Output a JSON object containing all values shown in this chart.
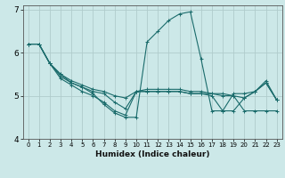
{
  "xlabel": "Humidex (Indice chaleur)",
  "bg_color": "#cce8e8",
  "line_color": "#1a6b6b",
  "grid_color": "#b0cccc",
  "xlim": [
    -0.5,
    23.5
  ],
  "ylim": [
    4,
    7.1
  ],
  "yticks": [
    4,
    5,
    6,
    7
  ],
  "xticks": [
    0,
    1,
    2,
    3,
    4,
    5,
    6,
    7,
    8,
    9,
    10,
    11,
    12,
    13,
    14,
    15,
    16,
    17,
    18,
    19,
    20,
    21,
    22,
    23
  ],
  "series": [
    [
      6.2,
      6.2,
      5.75,
      5.5,
      5.35,
      5.25,
      5.15,
      5.1,
      5.0,
      4.95,
      5.1,
      5.1,
      5.1,
      5.1,
      5.1,
      5.05,
      5.05,
      5.05,
      5.0,
      5.0,
      4.95,
      5.1,
      5.3,
      4.9
    ],
    [
      6.2,
      6.2,
      5.75,
      5.5,
      5.3,
      5.2,
      5.05,
      4.8,
      4.6,
      4.5,
      4.5,
      6.25,
      6.5,
      6.75,
      6.9,
      6.95,
      5.85,
      4.65,
      4.65,
      5.05,
      5.05,
      5.1,
      5.35,
      4.9
    ],
    [
      6.2,
      6.2,
      5.75,
      5.4,
      5.25,
      5.1,
      5.0,
      4.85,
      4.65,
      4.55,
      5.1,
      5.1,
      5.1,
      5.1,
      5.1,
      5.05,
      5.05,
      5.0,
      4.65,
      4.65,
      4.95,
      5.1,
      5.3,
      4.9
    ],
    [
      6.2,
      6.2,
      5.75,
      5.45,
      5.3,
      5.2,
      5.1,
      5.05,
      4.85,
      4.7,
      5.1,
      5.15,
      5.15,
      5.15,
      5.15,
      5.1,
      5.1,
      5.05,
      5.05,
      5.0,
      4.65,
      4.65,
      4.65,
      4.65
    ]
  ]
}
